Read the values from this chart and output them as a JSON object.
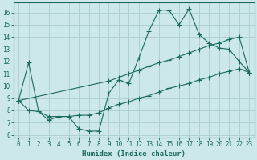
{
  "xlabel": "Humidex (Indice chaleur)",
  "xlim": [
    -0.5,
    23.5
  ],
  "ylim": [
    5.8,
    16.8
  ],
  "yticks": [
    6,
    7,
    8,
    9,
    10,
    11,
    12,
    13,
    14,
    15,
    16
  ],
  "xticks": [
    0,
    1,
    2,
    3,
    4,
    5,
    6,
    7,
    8,
    9,
    10,
    11,
    12,
    13,
    14,
    15,
    16,
    17,
    18,
    19,
    20,
    21,
    22,
    23
  ],
  "bg_color": "#cce8e8",
  "grid_color": "#aacccc",
  "line_color": "#1a6a5a",
  "line1_x": [
    0,
    1,
    2,
    3,
    4,
    5,
    6,
    7,
    8,
    9,
    10,
    11,
    12,
    13,
    14,
    15,
    16,
    17,
    18,
    19,
    20,
    21,
    22,
    23
  ],
  "line1_y": [
    8.8,
    11.9,
    7.9,
    7.2,
    7.5,
    7.5,
    6.5,
    6.3,
    6.3,
    9.4,
    10.5,
    10.2,
    12.3,
    14.5,
    16.2,
    16.2,
    15.0,
    16.3,
    14.2,
    13.5,
    13.1,
    13.0,
    12.0,
    11.1
  ],
  "line2_x": [
    0,
    9,
    10,
    11,
    12,
    13,
    14,
    15,
    16,
    17,
    18,
    19,
    20,
    21,
    22,
    23
  ],
  "line2_y": [
    8.8,
    10.4,
    10.7,
    11.0,
    11.3,
    11.6,
    11.9,
    12.1,
    12.4,
    12.7,
    13.0,
    13.3,
    13.5,
    13.8,
    14.0,
    11.1
  ],
  "line3_x": [
    0,
    1,
    2,
    3,
    4,
    5,
    6,
    7,
    8,
    9,
    10,
    11,
    12,
    13,
    14,
    15,
    16,
    17,
    18,
    19,
    20,
    21,
    22,
    23
  ],
  "line3_y": [
    8.8,
    8.0,
    7.9,
    7.5,
    7.5,
    7.5,
    7.6,
    7.6,
    7.8,
    8.2,
    8.5,
    8.7,
    9.0,
    9.2,
    9.5,
    9.8,
    10.0,
    10.2,
    10.5,
    10.7,
    11.0,
    11.2,
    11.4,
    11.1
  ]
}
